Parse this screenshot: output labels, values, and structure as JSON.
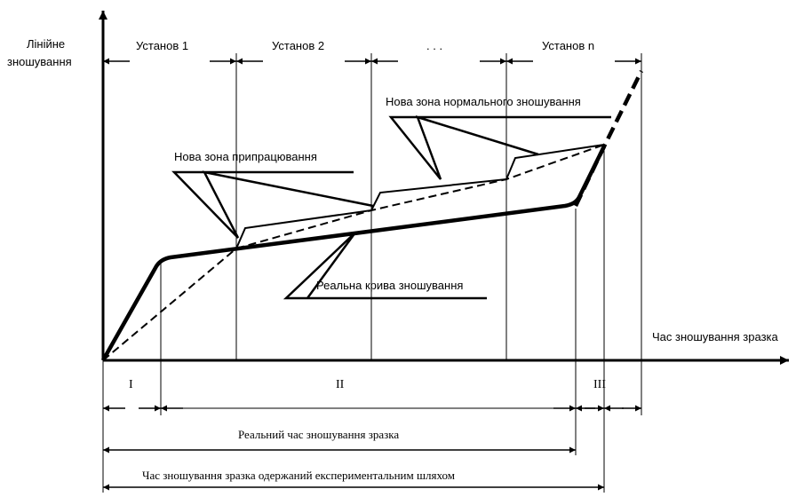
{
  "axes": {
    "y_label_line1": "Лінійне",
    "y_label_line2": "зношування",
    "x_label": "Час зношування зразка"
  },
  "stages": {
    "stage1": "Установ 1",
    "stage2": "Установ 2",
    "ellipsis": ". . .",
    "stage_n": "Установ n"
  },
  "callouts": {
    "new_normal_zone": "Нова зона нормального зношування",
    "new_runin_zone": "Нова зона припрацювання",
    "real_curve": "Реальна крива зношування"
  },
  "zones": {
    "zone1": "I",
    "zone2": "II",
    "zone3": "III"
  },
  "dimensions": {
    "real_time": "Реальний час зношування зразка",
    "experimental_time": "Час зношування зразка одержаний експериментальним шляхом"
  }
}
